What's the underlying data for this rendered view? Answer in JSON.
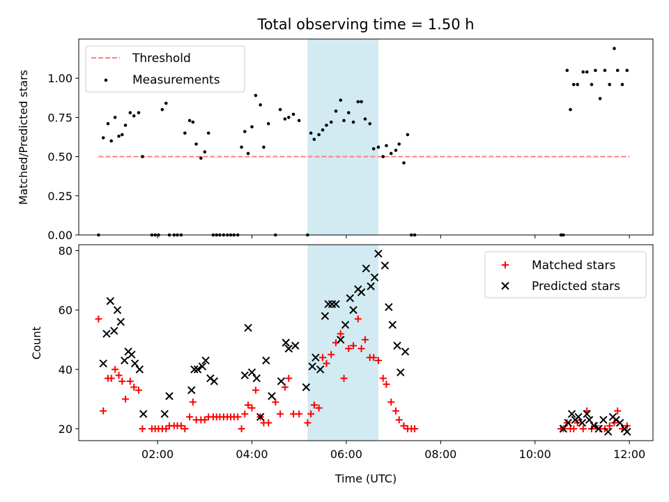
{
  "chart_data": [
    {
      "type": "scatter",
      "title": "Total observing time = 1.50 h",
      "ylabel": "Matched/Predicted stars",
      "xlim": [
        0.33,
        12.5
      ],
      "ylim": [
        0,
        1.25
      ],
      "xticks": [
        2,
        4,
        6,
        8,
        10,
        12
      ],
      "yticks": [
        "0.00",
        "0.25",
        "0.50",
        "0.75",
        "1.00"
      ],
      "highlight_span": {
        "x0": 5.18,
        "x1": 6.68,
        "color": "#add8e6"
      },
      "legend_position": "upper left",
      "threshold": {
        "name": "Threshold",
        "value": 0.5,
        "x0": 0.75,
        "x1": 12.0,
        "color": "#ff7f7f"
      },
      "series": [
        {
          "name": "Measurements",
          "color": "#000000",
          "x": [
            0.75,
            0.85,
            0.95,
            1.02,
            1.1,
            1.18,
            1.25,
            1.32,
            1.42,
            1.5,
            1.6,
            1.68,
            1.88,
            1.95,
            2.02,
            2.1,
            2.18,
            2.25,
            2.35,
            2.42,
            2.5,
            2.58,
            2.68,
            2.75,
            2.82,
            2.92,
            3.0,
            3.08,
            3.18,
            3.25,
            3.32,
            3.4,
            3.48,
            3.55,
            3.62,
            3.7,
            3.78,
            3.85,
            3.92,
            4.0,
            4.08,
            4.18,
            4.25,
            4.35,
            4.5,
            4.6,
            4.7,
            4.78,
            4.88,
            5.0,
            5.18,
            5.25,
            5.32,
            5.42,
            5.5,
            5.58,
            5.68,
            5.78,
            5.88,
            5.95,
            6.05,
            6.15,
            6.25,
            6.32,
            6.4,
            6.5,
            6.58,
            6.68,
            6.78,
            6.85,
            6.95,
            7.05,
            7.12,
            7.22,
            7.3,
            7.38,
            7.45,
            10.55,
            10.6,
            10.68,
            10.75,
            10.82,
            10.9,
            11.02,
            11.1,
            11.2,
            11.28,
            11.38,
            11.48,
            11.58,
            11.68,
            11.75,
            11.85,
            11.95
          ],
          "y": [
            0,
            0.62,
            0.71,
            0.6,
            0.75,
            0.63,
            0.64,
            0.7,
            0.78,
            0.76,
            0.78,
            0.5,
            0,
            0,
            0,
            0.8,
            0.84,
            0,
            0,
            0,
            0,
            0.65,
            0.73,
            0.72,
            0.58,
            0.49,
            0.53,
            0.65,
            0,
            0,
            0,
            0,
            0,
            0,
            0,
            0,
            0.56,
            0.66,
            0.52,
            0.69,
            0.89,
            0.83,
            0.56,
            0.71,
            0,
            0.8,
            0.74,
            0.75,
            0.77,
            0.73,
            0,
            0.65,
            0.61,
            0.64,
            0.67,
            0.7,
            0.72,
            0.79,
            0.86,
            0.73,
            0.78,
            0.72,
            0.85,
            0.85,
            0.74,
            0.71,
            0.55,
            0.56,
            0.5,
            0.57,
            0.52,
            0.54,
            0.58,
            0.46,
            0.64,
            0,
            0,
            0,
            0,
            1.05,
            0.8,
            0.96,
            0.96,
            1.04,
            1.04,
            0.96,
            1.05,
            0.87,
            1.05,
            0.96,
            1.19,
            1.05,
            0.96,
            1.05
          ]
        }
      ]
    },
    {
      "type": "scatter",
      "xlabel": "Time (UTC)",
      "ylabel": "Count",
      "xlim": [
        0.33,
        12.5
      ],
      "ylim": [
        16,
        82
      ],
      "xticks": [
        2,
        4,
        6,
        8,
        10,
        12
      ],
      "xtick_labels": [
        "02:00",
        "04:00",
        "06:00",
        "08:00",
        "10:00",
        "12:00"
      ],
      "yticks": [
        20,
        40,
        60,
        80
      ],
      "highlight_span": {
        "x0": 5.18,
        "x1": 6.68,
        "color": "#add8e6"
      },
      "legend_position": "upper right",
      "series": [
        {
          "name": "Matched stars",
          "marker": "plus",
          "color": "#ff0000",
          "x": [
            0.75,
            0.85,
            0.95,
            1.02,
            1.1,
            1.18,
            1.25,
            1.32,
            1.42,
            1.5,
            1.6,
            1.68,
            1.88,
            1.95,
            2.02,
            2.1,
            2.18,
            2.25,
            2.35,
            2.42,
            2.5,
            2.58,
            2.68,
            2.75,
            2.82,
            2.92,
            3.0,
            3.08,
            3.18,
            3.25,
            3.32,
            3.4,
            3.48,
            3.55,
            3.62,
            3.7,
            3.78,
            3.85,
            3.92,
            4.0,
            4.08,
            4.18,
            4.25,
            4.35,
            4.5,
            4.6,
            4.7,
            4.78,
            4.88,
            5.0,
            5.18,
            5.25,
            5.32,
            5.42,
            5.5,
            5.58,
            5.68,
            5.78,
            5.88,
            5.95,
            6.05,
            6.15,
            6.25,
            6.32,
            6.4,
            6.5,
            6.58,
            6.68,
            6.78,
            6.85,
            6.95,
            7.05,
            7.12,
            7.22,
            7.3,
            7.38,
            7.45,
            10.55,
            10.6,
            10.68,
            10.75,
            10.82,
            10.9,
            11.02,
            11.1,
            11.2,
            11.28,
            11.38,
            11.48,
            11.58,
            11.68,
            11.75,
            11.85,
            11.95
          ],
          "y": [
            57,
            26,
            37,
            37,
            40,
            38,
            36,
            30,
            36,
            34,
            33,
            20,
            20,
            20,
            20,
            20,
            20,
            21,
            21,
            21,
            21,
            20,
            24,
            29,
            23,
            23,
            23,
            24,
            24,
            24,
            24,
            24,
            24,
            24,
            24,
            24,
            20,
            25,
            28,
            27,
            33,
            24,
            22,
            22,
            29,
            25,
            34,
            37,
            25,
            25,
            22,
            25,
            28,
            27,
            44,
            42,
            45,
            49,
            52,
            37,
            47,
            48,
            57,
            47,
            50,
            44,
            44,
            43,
            37,
            35,
            29,
            26,
            23,
            21,
            20,
            20,
            20,
            20,
            20,
            22,
            20,
            20,
            22,
            20,
            26,
            20,
            21,
            20,
            20,
            21,
            22,
            26,
            20,
            21
          ]
        },
        {
          "name": "Predicted stars",
          "marker": "x",
          "color": "#000000",
          "x": [
            0.85,
            0.92,
            1.0,
            1.08,
            1.15,
            1.22,
            1.3,
            1.38,
            1.45,
            1.52,
            1.62,
            1.7,
            2.15,
            2.25,
            2.72,
            2.78,
            2.85,
            2.95,
            3.02,
            3.12,
            3.2,
            3.85,
            3.92,
            4.0,
            4.1,
            4.18,
            4.3,
            4.42,
            4.62,
            4.72,
            4.78,
            4.92,
            5.15,
            5.28,
            5.35,
            5.45,
            5.55,
            5.62,
            5.7,
            5.78,
            5.88,
            5.98,
            6.08,
            6.15,
            6.25,
            6.32,
            6.42,
            6.52,
            6.6,
            6.68,
            6.82,
            6.9,
            6.98,
            7.08,
            7.15,
            7.25,
            10.6,
            10.7,
            10.78,
            10.85,
            10.92,
            11.0,
            11.1,
            11.15,
            11.25,
            11.35,
            11.45,
            11.55,
            11.65,
            11.72,
            11.8,
            11.9,
            11.95
          ],
          "y": [
            42,
            52,
            63,
            53,
            60,
            56,
            43,
            46,
            45,
            42,
            40,
            25,
            25,
            31,
            33,
            40,
            40,
            41,
            43,
            37,
            36,
            38,
            54,
            39,
            37,
            24,
            43,
            31,
            36,
            49,
            47,
            48,
            34,
            41,
            44,
            40,
            58,
            62,
            62,
            62,
            50,
            55,
            64,
            60,
            67,
            66,
            74,
            68,
            71,
            79,
            75,
            61,
            55,
            48,
            39,
            46,
            20,
            22,
            25,
            23,
            24,
            22,
            25,
            23,
            21,
            20,
            23,
            19,
            24,
            23,
            22,
            20,
            19
          ]
        }
      ]
    }
  ]
}
